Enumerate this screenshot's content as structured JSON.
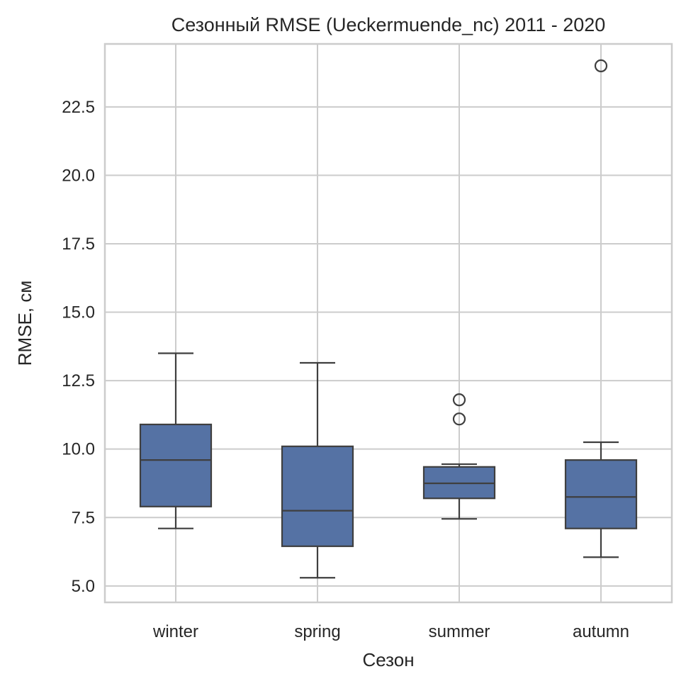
{
  "chart_data": {
    "type": "box",
    "title": "Сезонный RMSE (Ueckermuende_nc) 2011 - 2020",
    "xlabel": "Сезон",
    "ylabel": "RMSE, см",
    "categories": [
      "winter",
      "spring",
      "summer",
      "autumn"
    ],
    "yticks": [
      "5.0",
      "7.5",
      "10.0",
      "12.5",
      "15.0",
      "17.5",
      "20.0",
      "22.5"
    ],
    "ylim": [
      4.4,
      24.8
    ],
    "grid": true,
    "box_color": "#5572a4",
    "boxes": [
      {
        "category": "winter",
        "whisker_low": 7.1,
        "q1": 7.9,
        "median": 9.6,
        "q3": 10.9,
        "whisker_high": 13.5,
        "outliers": []
      },
      {
        "category": "spring",
        "whisker_low": 5.3,
        "q1": 6.45,
        "median": 7.75,
        "q3": 10.1,
        "whisker_high": 13.15,
        "outliers": []
      },
      {
        "category": "summer",
        "whisker_low": 7.45,
        "q1": 8.2,
        "median": 8.75,
        "q3": 9.35,
        "whisker_high": 9.45,
        "outliers": [
          11.1,
          11.8
        ]
      },
      {
        "category": "autumn",
        "whisker_low": 6.05,
        "q1": 7.1,
        "median": 8.25,
        "q3": 9.6,
        "whisker_high": 10.25,
        "outliers": [
          24.0
        ]
      }
    ]
  }
}
